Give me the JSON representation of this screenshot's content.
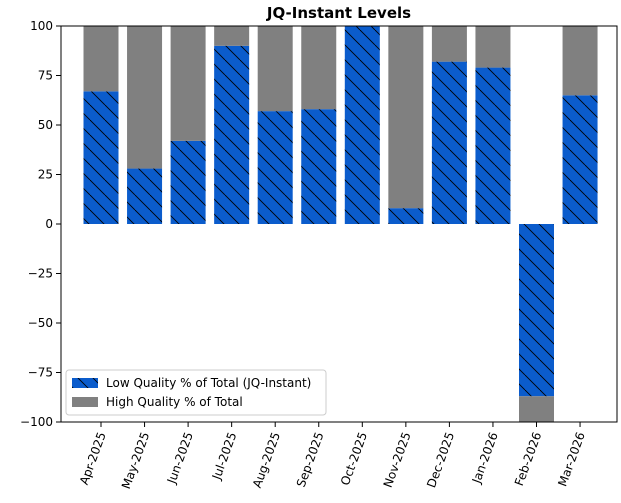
{
  "chart_data": {
    "type": "bar",
    "stacked": true,
    "title": "JQ-Instant Levels",
    "xlabel": "",
    "ylabel": "",
    "ylim": [
      -100,
      100
    ],
    "yticks": [
      100,
      75,
      50,
      25,
      0,
      -25,
      -50,
      -75,
      -100
    ],
    "categories": [
      "Apr-2025",
      "May-2025",
      "Jun-2025",
      "Jul-2025",
      "Aug-2025",
      "Sep-2025",
      "Oct-2025",
      "Nov-2025",
      "Dec-2025",
      "Jan-2026",
      "Feb-2026",
      "Mar-2026"
    ],
    "series": [
      {
        "name": "Low Quality % of Total (JQ-Instant)",
        "color": "#0b5ccc",
        "hatch": "diagonal",
        "values": [
          67,
          28,
          42,
          90,
          57,
          58,
          100,
          8,
          82,
          79,
          -87,
          65
        ]
      },
      {
        "name": "High Quality % of Total",
        "color": "#808080",
        "values": [
          33,
          72,
          58,
          10,
          43,
          42,
          0,
          92,
          18,
          21,
          -13,
          35
        ]
      }
    ],
    "legend_position": "lower-left",
    "grid": false
  }
}
